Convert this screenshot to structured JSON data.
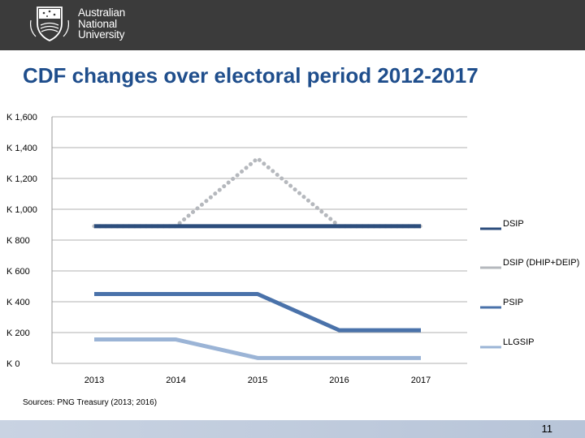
{
  "header": {
    "university_line1": "Australian",
    "university_line2": "National",
    "university_line3": "University"
  },
  "slide": {
    "title": "CDF changes over electoral period 2012-2017",
    "sources": "Sources: PNG Treasury (2013; 2016)",
    "page_number": "11"
  },
  "colors": {
    "header_bg": "#3b3b3b",
    "title": "#1f4e8c",
    "grid": "#b0b0b0"
  },
  "chart_data": {
    "type": "line",
    "title": "",
    "xlabel": "",
    "ylabel": "",
    "categories": [
      "2013",
      "2014",
      "2015",
      "2016",
      "2017"
    ],
    "ylim": [
      0,
      1600
    ],
    "yticks": [
      {
        "value": 1600,
        "label": "K 1,600"
      },
      {
        "value": 1400,
        "label": "K 1,400"
      },
      {
        "value": 1200,
        "label": "K 1,200"
      },
      {
        "value": 1000,
        "label": "K 1,000"
      },
      {
        "value": 800,
        "label": "K 800"
      },
      {
        "value": 600,
        "label": "K 600"
      },
      {
        "value": 400,
        "label": "K 400"
      },
      {
        "value": 200,
        "label": "K 200"
      },
      {
        "value": 0,
        "label": "K 0"
      }
    ],
    "grid": true,
    "legend_position": "right",
    "series": [
      {
        "name": "DSIP (DHIP+DEIP)",
        "values": [
          890,
          890,
          1330,
          890,
          890
        ],
        "color": "#b5b8bd",
        "style": "dotted"
      },
      {
        "name": "DSIP",
        "values": [
          890,
          890,
          890,
          890,
          890
        ],
        "color": "#2c4d7c",
        "style": "solid"
      },
      {
        "name": "PSIP",
        "values": [
          450,
          450,
          450,
          215,
          215
        ],
        "color": "#4a72aa",
        "style": "solid"
      },
      {
        "name": "LLGSIP",
        "values": [
          155,
          155,
          35,
          35,
          35
        ],
        "color": "#9bb4d6",
        "style": "solid"
      }
    ],
    "legend": [
      "DSIP",
      "DSIP (DHIP+DEIP)",
      "PSIP",
      "LLGSIP"
    ]
  }
}
